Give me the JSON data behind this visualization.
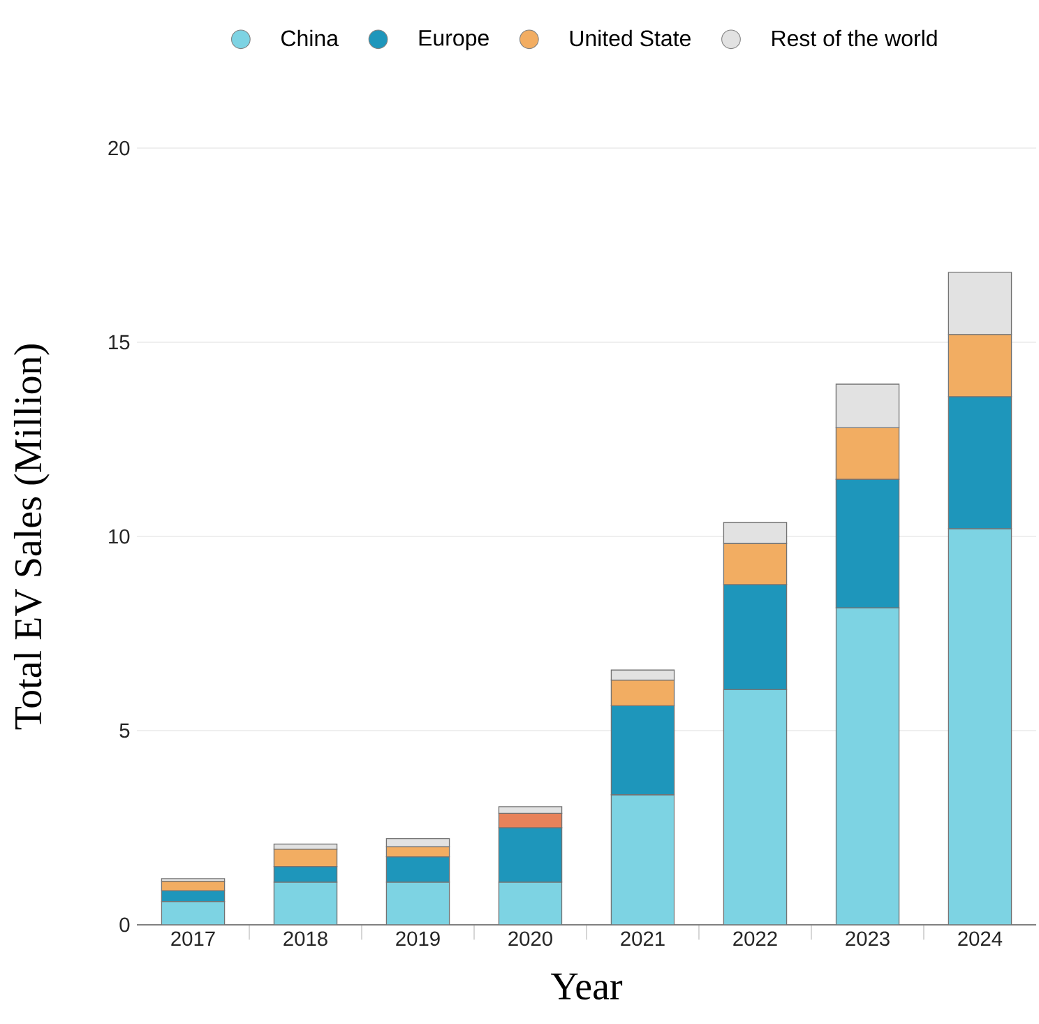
{
  "chart_data": {
    "type": "bar",
    "stacked": true,
    "xlabel": "Year",
    "ylabel": "Total EV Sales (Million)",
    "categories": [
      "2017",
      "2018",
      "2019",
      "2020",
      "2021",
      "2022",
      "2023",
      "2024"
    ],
    "series": [
      {
        "name": "China",
        "color": "#7dd3e3",
        "values": [
          0.6,
          1.1,
          1.1,
          1.1,
          3.35,
          6.06,
          8.16,
          10.2
        ]
      },
      {
        "name": "Europe",
        "color": "#1e96bb",
        "values": [
          0.28,
          0.4,
          0.65,
          1.4,
          2.29,
          2.7,
          3.31,
          3.4
        ]
      },
      {
        "name": "United State",
        "color": "#f2ad62",
        "colors": [
          "#f2ad62",
          "#f2ad62",
          "#f2ad62",
          "#e8825a",
          "#f2ad62",
          "#f2ad62",
          "#f2ad62",
          "#f2ad62"
        ],
        "values": [
          0.24,
          0.45,
          0.26,
          0.37,
          0.66,
          1.06,
          1.33,
          1.6
        ]
      },
      {
        "name": "Rest of the world",
        "color": "#e2e2e2",
        "values": [
          0.07,
          0.13,
          0.21,
          0.17,
          0.26,
          0.54,
          1.12,
          1.6
        ]
      }
    ],
    "ylim": [
      0,
      20
    ],
    "yticks": [
      0,
      5,
      10,
      15,
      20
    ],
    "grid": "y",
    "legend": "top",
    "marker": "circle"
  }
}
